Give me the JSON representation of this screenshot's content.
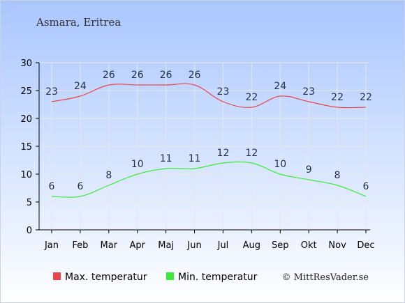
{
  "location": "Asmara, Eritrea",
  "copyright": "© MittResVader.se",
  "colors": {
    "bg_top": "#a9c6ff",
    "bg_bottom": "#ffffff",
    "max": "#e8474d",
    "min": "#3de83d",
    "label": "#1f2f52",
    "axis": "#000000",
    "grid": "#e7e7e7"
  },
  "chart_data": {
    "type": "line",
    "categories": [
      "Jan",
      "Feb",
      "Mar",
      "Apr",
      "Maj",
      "Jun",
      "Jul",
      "Aug",
      "Sep",
      "Okt",
      "Nov",
      "Dec"
    ],
    "series": [
      {
        "name": "Max. temperatur",
        "values": [
          23,
          24,
          26,
          26,
          26,
          26,
          23,
          22,
          24,
          23,
          22,
          22
        ]
      },
      {
        "name": "Min. temperatur",
        "values": [
          6,
          6,
          8,
          10,
          11,
          11,
          12,
          12,
          10,
          9,
          8,
          6
        ]
      }
    ],
    "ylim": [
      0,
      30
    ],
    "yticks": [
      0,
      5,
      10,
      15,
      20,
      25,
      30
    ],
    "grid": true,
    "legend": "bottom-left"
  }
}
